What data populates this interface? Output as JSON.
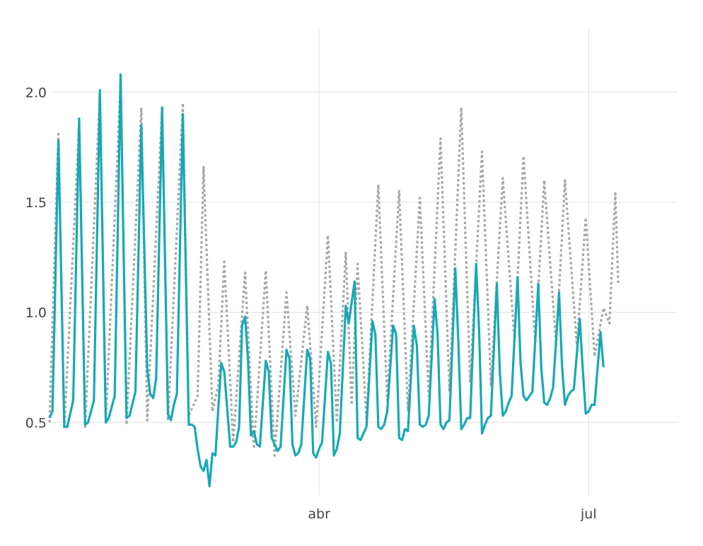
{
  "chart_data": {
    "type": "line",
    "title": "",
    "xlabel": "",
    "ylabel": "",
    "x_axis": {
      "kind": "date",
      "range": [
        "2020-01-01",
        "2020-07-31"
      ],
      "ticks": [
        {
          "value": "2020-04-01",
          "label": "abr"
        },
        {
          "value": "2020-07-01",
          "label": "jul"
        }
      ]
    },
    "y_axis": {
      "range": [
        0.17,
        2.29
      ],
      "ticks": [
        {
          "value": 0.5,
          "label": "0.5"
        },
        {
          "value": 1.0,
          "label": "1.0"
        },
        {
          "value": 1.5,
          "label": "1.5"
        },
        {
          "value": 2.0,
          "label": "2.0"
        }
      ]
    },
    "grid": true,
    "legend": "none",
    "series": [
      {
        "style": "dotted",
        "color": "#a6a6a6",
        "points": [
          [
            "2020-01-01",
            0.5
          ],
          [
            "2020-01-04",
            1.82
          ],
          [
            "2020-01-06",
            0.47
          ],
          [
            "2020-01-11",
            1.86
          ],
          [
            "2020-01-13",
            0.48
          ],
          [
            "2020-01-18",
            2.0
          ],
          [
            "2020-01-20",
            0.5
          ],
          [
            "2020-01-25",
            2.05
          ],
          [
            "2020-01-27",
            0.49
          ],
          [
            "2020-02-01",
            1.93
          ],
          [
            "2020-02-03",
            0.51
          ],
          [
            "2020-02-08",
            1.93
          ],
          [
            "2020-02-10",
            0.51
          ],
          [
            "2020-02-15",
            1.95
          ],
          [
            "2020-02-17",
            0.53
          ],
          [
            "2020-02-20",
            0.62
          ],
          [
            "2020-02-22",
            1.66
          ],
          [
            "2020-02-25",
            0.55
          ],
          [
            "2020-02-27",
            0.67
          ],
          [
            "2020-02-29",
            1.23
          ],
          [
            "2020-03-03",
            0.41
          ],
          [
            "2020-03-07",
            1.18
          ],
          [
            "2020-03-10",
            0.38
          ],
          [
            "2020-03-14",
            1.19
          ],
          [
            "2020-03-17",
            0.35
          ],
          [
            "2020-03-21",
            1.09
          ],
          [
            "2020-03-24",
            0.53
          ],
          [
            "2020-03-28",
            1.03
          ],
          [
            "2020-03-31",
            0.48
          ],
          [
            "2020-04-04",
            1.35
          ],
          [
            "2020-04-07",
            0.5
          ],
          [
            "2020-04-10",
            1.27
          ],
          [
            "2020-04-12",
            0.58
          ],
          [
            "2020-04-14",
            1.22
          ],
          [
            "2020-04-17",
            0.51
          ],
          [
            "2020-04-21",
            1.58
          ],
          [
            "2020-04-24",
            0.6
          ],
          [
            "2020-04-28",
            1.55
          ],
          [
            "2020-05-01",
            0.55
          ],
          [
            "2020-05-05",
            1.52
          ],
          [
            "2020-05-08",
            0.62
          ],
          [
            "2020-05-12",
            1.79
          ],
          [
            "2020-05-15",
            0.64
          ],
          [
            "2020-05-19",
            1.93
          ],
          [
            "2020-05-22",
            0.68
          ],
          [
            "2020-05-26",
            1.73
          ],
          [
            "2020-05-29",
            0.67
          ],
          [
            "2020-06-02",
            1.61
          ],
          [
            "2020-06-06",
            0.87
          ],
          [
            "2020-06-09",
            1.71
          ],
          [
            "2020-06-13",
            0.86
          ],
          [
            "2020-06-16",
            1.6
          ],
          [
            "2020-06-20",
            0.85
          ],
          [
            "2020-06-23",
            1.6
          ],
          [
            "2020-06-27",
            0.85
          ],
          [
            "2020-06-30",
            1.43
          ],
          [
            "2020-07-03",
            0.8
          ],
          [
            "2020-07-06",
            1.02
          ],
          [
            "2020-07-08",
            0.95
          ],
          [
            "2020-07-10",
            1.54
          ],
          [
            "2020-07-11",
            1.13
          ]
        ]
      },
      {
        "style": "solid",
        "color": "#17a9b5",
        "points": [
          [
            "2020-01-01",
            0.52
          ],
          [
            "2020-01-02",
            0.55
          ],
          [
            "2020-01-04",
            1.78
          ],
          [
            "2020-01-06",
            0.48
          ],
          [
            "2020-01-07",
            0.48
          ],
          [
            "2020-01-09",
            0.6
          ],
          [
            "2020-01-11",
            1.88
          ],
          [
            "2020-01-13",
            0.49
          ],
          [
            "2020-01-14",
            0.5
          ],
          [
            "2020-01-16",
            0.6
          ],
          [
            "2020-01-18",
            2.01
          ],
          [
            "2020-01-20",
            0.5
          ],
          [
            "2020-01-21",
            0.52
          ],
          [
            "2020-01-23",
            0.62
          ],
          [
            "2020-01-25",
            2.08
          ],
          [
            "2020-01-27",
            0.52
          ],
          [
            "2020-01-28",
            0.53
          ],
          [
            "2020-01-30",
            0.64
          ],
          [
            "2020-02-01",
            1.85
          ],
          [
            "2020-02-03",
            0.74
          ],
          [
            "2020-02-04",
            0.63
          ],
          [
            "2020-02-05",
            0.61
          ],
          [
            "2020-02-06",
            0.7
          ],
          [
            "2020-02-08",
            1.93
          ],
          [
            "2020-02-10",
            0.54
          ],
          [
            "2020-02-11",
            0.51
          ],
          [
            "2020-02-12",
            0.58
          ],
          [
            "2020-02-13",
            0.63
          ],
          [
            "2020-02-15",
            1.9
          ],
          [
            "2020-02-17",
            0.49
          ],
          [
            "2020-02-18",
            0.49
          ],
          [
            "2020-02-19",
            0.48
          ],
          [
            "2020-02-20",
            0.38
          ],
          [
            "2020-02-21",
            0.3
          ],
          [
            "2020-02-22",
            0.28
          ],
          [
            "2020-02-23",
            0.33
          ],
          [
            "2020-02-24",
            0.21
          ],
          [
            "2020-02-25",
            0.36
          ],
          [
            "2020-02-26",
            0.35
          ],
          [
            "2020-02-27",
            0.57
          ],
          [
            "2020-02-28",
            0.77
          ],
          [
            "2020-02-29",
            0.73
          ],
          [
            "2020-03-02",
            0.39
          ],
          [
            "2020-03-03",
            0.39
          ],
          [
            "2020-03-04",
            0.41
          ],
          [
            "2020-03-05",
            0.48
          ],
          [
            "2020-03-06",
            0.94
          ],
          [
            "2020-03-07",
            0.98
          ],
          [
            "2020-03-08",
            0.79
          ],
          [
            "2020-03-09",
            0.44
          ],
          [
            "2020-03-10",
            0.46
          ],
          [
            "2020-03-11",
            0.4
          ],
          [
            "2020-03-12",
            0.39
          ],
          [
            "2020-03-14",
            0.78
          ],
          [
            "2020-03-15",
            0.73
          ],
          [
            "2020-03-16",
            0.43
          ],
          [
            "2020-03-17",
            0.4
          ],
          [
            "2020-03-18",
            0.37
          ],
          [
            "2020-03-19",
            0.39
          ],
          [
            "2020-03-21",
            0.83
          ],
          [
            "2020-03-22",
            0.79
          ],
          [
            "2020-03-23",
            0.4
          ],
          [
            "2020-03-24",
            0.35
          ],
          [
            "2020-03-25",
            0.36
          ],
          [
            "2020-03-26",
            0.4
          ],
          [
            "2020-03-28",
            0.83
          ],
          [
            "2020-03-29",
            0.79
          ],
          [
            "2020-03-30",
            0.36
          ],
          [
            "2020-03-31",
            0.34
          ],
          [
            "2020-04-01",
            0.38
          ],
          [
            "2020-04-02",
            0.41
          ],
          [
            "2020-04-04",
            0.82
          ],
          [
            "2020-04-05",
            0.77
          ],
          [
            "2020-04-06",
            0.35
          ],
          [
            "2020-04-07",
            0.38
          ],
          [
            "2020-04-08",
            0.45
          ],
          [
            "2020-04-10",
            1.03
          ],
          [
            "2020-04-11",
            0.95
          ],
          [
            "2020-04-13",
            1.14
          ],
          [
            "2020-04-14",
            0.43
          ],
          [
            "2020-04-15",
            0.42
          ],
          [
            "2020-04-16",
            0.45
          ],
          [
            "2020-04-17",
            0.48
          ],
          [
            "2020-04-19",
            0.96
          ],
          [
            "2020-04-20",
            0.9
          ],
          [
            "2020-04-21",
            0.48
          ],
          [
            "2020-04-22",
            0.47
          ],
          [
            "2020-04-23",
            0.49
          ],
          [
            "2020-04-24",
            0.55
          ],
          [
            "2020-04-26",
            0.94
          ],
          [
            "2020-04-27",
            0.9
          ],
          [
            "2020-04-28",
            0.43
          ],
          [
            "2020-04-29",
            0.42
          ],
          [
            "2020-04-30",
            0.47
          ],
          [
            "2020-05-01",
            0.46
          ],
          [
            "2020-05-03",
            0.94
          ],
          [
            "2020-05-04",
            0.85
          ],
          [
            "2020-05-05",
            0.49
          ],
          [
            "2020-05-06",
            0.48
          ],
          [
            "2020-05-07",
            0.49
          ],
          [
            "2020-05-08",
            0.53
          ],
          [
            "2020-05-10",
            1.06
          ],
          [
            "2020-05-11",
            0.9
          ],
          [
            "2020-05-12",
            0.49
          ],
          [
            "2020-05-13",
            0.47
          ],
          [
            "2020-05-14",
            0.5
          ],
          [
            "2020-05-15",
            0.51
          ],
          [
            "2020-05-17",
            1.2
          ],
          [
            "2020-05-18",
            0.87
          ],
          [
            "2020-05-19",
            0.47
          ],
          [
            "2020-05-20",
            0.49
          ],
          [
            "2020-05-21",
            0.52
          ],
          [
            "2020-05-22",
            0.52
          ],
          [
            "2020-05-24",
            1.22
          ],
          [
            "2020-05-25",
            0.92
          ],
          [
            "2020-05-26",
            0.45
          ],
          [
            "2020-05-27",
            0.49
          ],
          [
            "2020-05-28",
            0.52
          ],
          [
            "2020-05-29",
            0.53
          ],
          [
            "2020-05-31",
            1.13
          ],
          [
            "2020-06-01",
            0.73
          ],
          [
            "2020-06-02",
            0.53
          ],
          [
            "2020-06-03",
            0.55
          ],
          [
            "2020-06-04",
            0.59
          ],
          [
            "2020-06-05",
            0.62
          ],
          [
            "2020-06-07",
            1.16
          ],
          [
            "2020-06-08",
            0.77
          ],
          [
            "2020-06-09",
            0.62
          ],
          [
            "2020-06-10",
            0.6
          ],
          [
            "2020-06-11",
            0.62
          ],
          [
            "2020-06-12",
            0.64
          ],
          [
            "2020-06-14",
            1.13
          ],
          [
            "2020-06-15",
            0.75
          ],
          [
            "2020-06-16",
            0.59
          ],
          [
            "2020-06-17",
            0.58
          ],
          [
            "2020-06-18",
            0.61
          ],
          [
            "2020-06-19",
            0.66
          ],
          [
            "2020-06-21",
            1.09
          ],
          [
            "2020-06-22",
            0.76
          ],
          [
            "2020-06-23",
            0.58
          ],
          [
            "2020-06-24",
            0.62
          ],
          [
            "2020-06-25",
            0.64
          ],
          [
            "2020-06-26",
            0.65
          ],
          [
            "2020-06-28",
            0.97
          ],
          [
            "2020-06-29",
            0.74
          ],
          [
            "2020-06-30",
            0.54
          ],
          [
            "2020-07-01",
            0.55
          ],
          [
            "2020-07-02",
            0.58
          ],
          [
            "2020-07-03",
            0.58
          ],
          [
            "2020-07-05",
            0.91
          ],
          [
            "2020-07-06",
            0.75
          ]
        ]
      }
    ]
  }
}
